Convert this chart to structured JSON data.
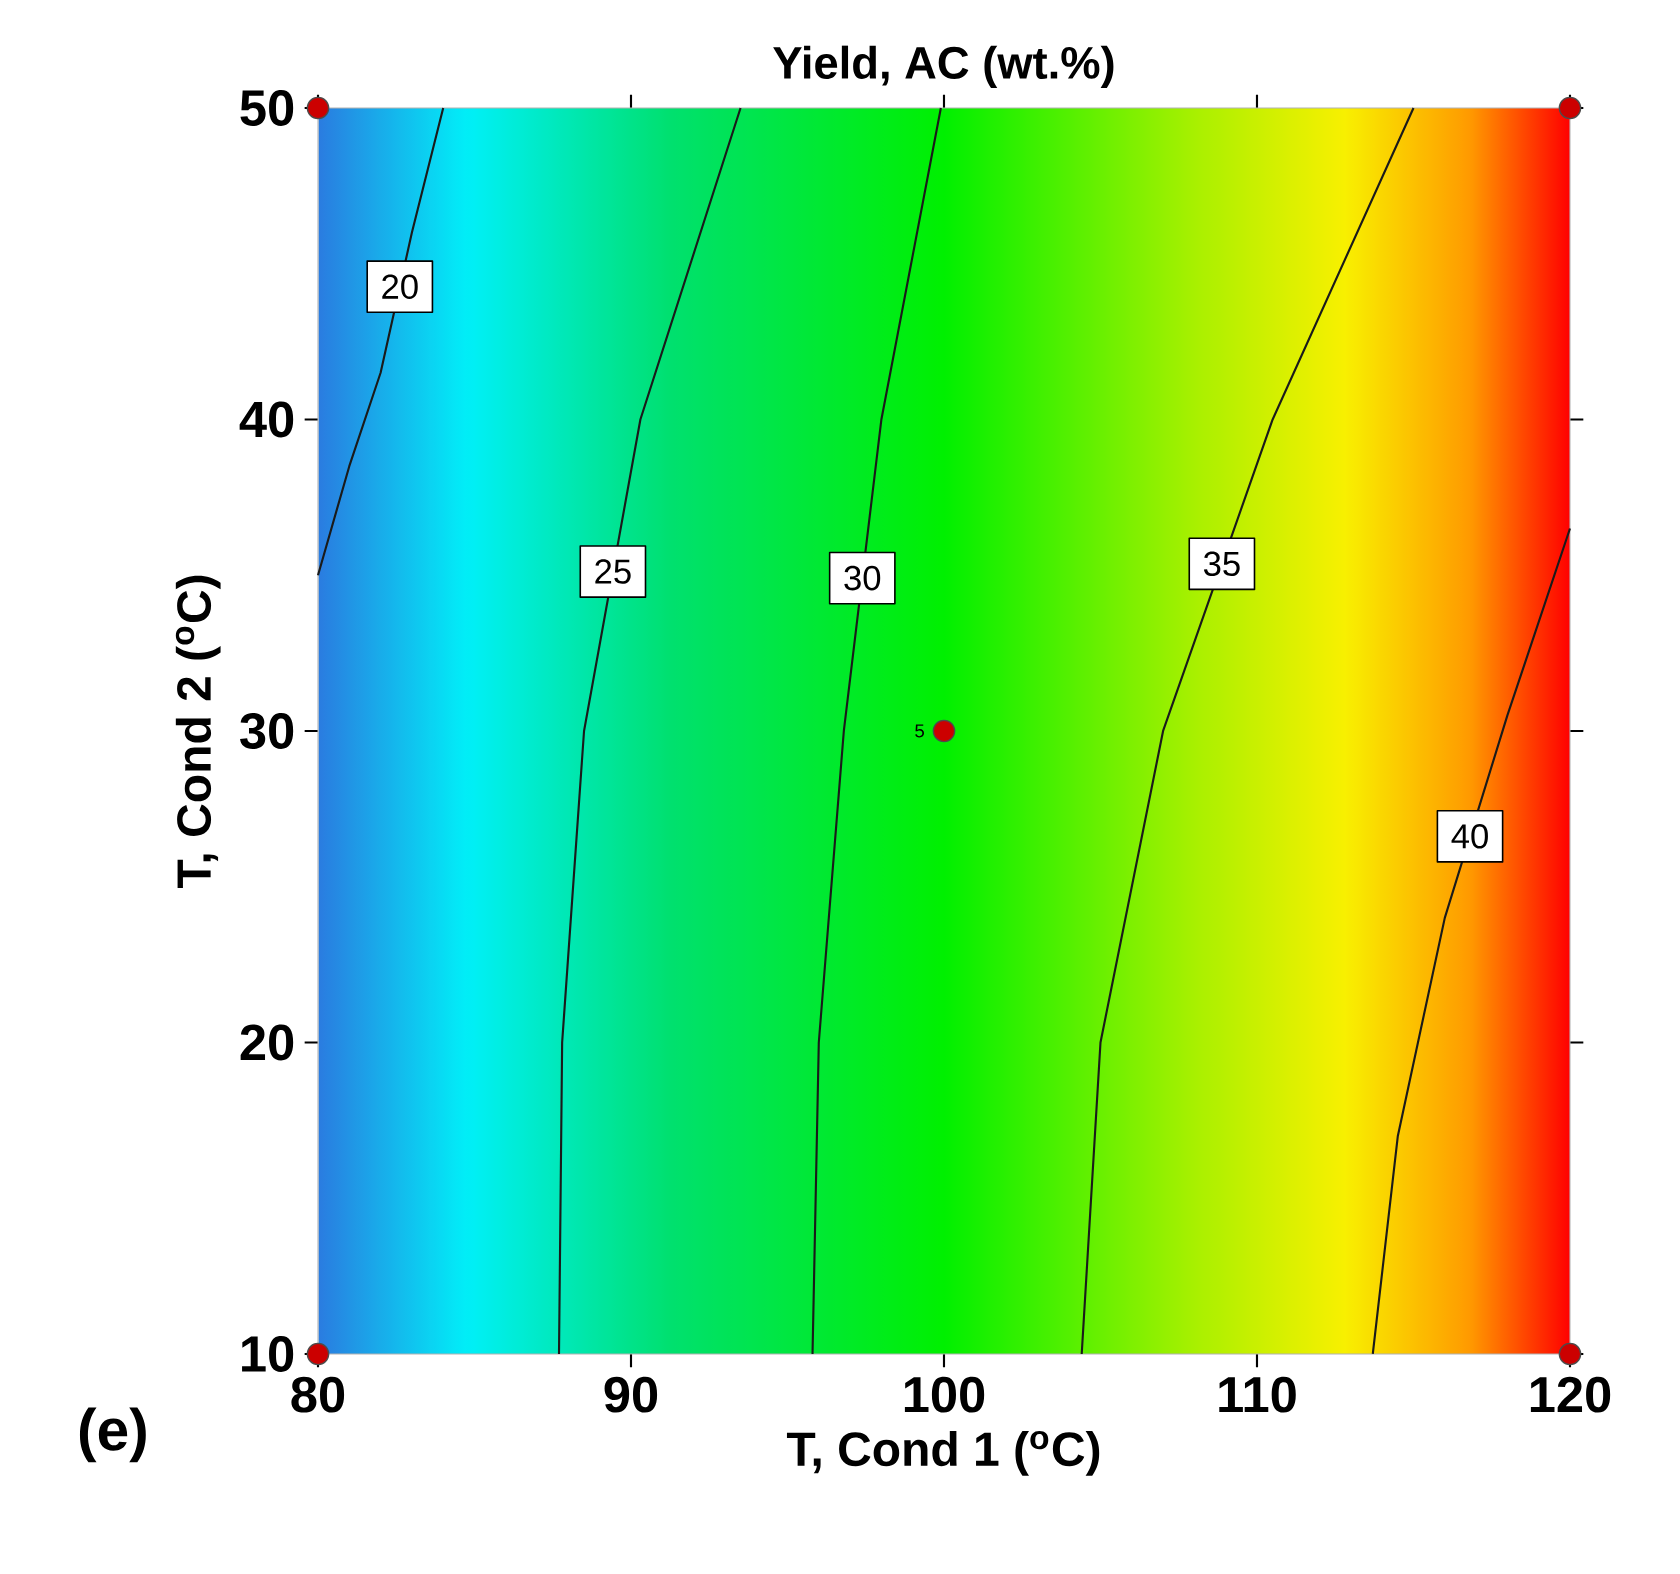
{
  "chart_data": {
    "type": "line",
    "title": "Yield, AC (wt.%)",
    "xlabel": "T, Cond 1 ($^{o}$C)",
    "ylabel": "T, Cond 2 ($^{o}$C)",
    "xlim": [
      80,
      120
    ],
    "ylim": [
      10,
      50
    ],
    "xticks": [
      80,
      90,
      100,
      110,
      120
    ],
    "yticks": [
      10,
      20,
      30,
      40,
      50
    ],
    "series": [
      {
        "name": "20",
        "color": "#1a1a1a",
        "x": [
          80,
          81,
          82,
          83,
          84
        ],
        "values": [
          35,
          38.5,
          41.5,
          46,
          50
        ]
      },
      {
        "name": "25",
        "color": "#1a1a1a",
        "x": [
          87.7,
          87.8,
          88.5,
          90.3,
          93.5
        ],
        "values": [
          10,
          20,
          30,
          40,
          50
        ]
      },
      {
        "name": "30",
        "color": "#1a1a1a",
        "x": [
          95.8,
          96,
          96.8,
          98,
          99.9
        ],
        "values": [
          10,
          20,
          30,
          40,
          50
        ]
      },
      {
        "name": "35",
        "color": "#1a1a1a",
        "x": [
          104.4,
          105,
          107,
          110.5,
          115
        ],
        "values": [
          10,
          20,
          30,
          40,
          50
        ]
      },
      {
        "name": "40",
        "color": "#1a1a1a",
        "x": [
          113.7,
          114.5,
          116,
          118,
          120
        ],
        "values": [
          10,
          17,
          24,
          30.5,
          36.5
        ]
      },
      {
        "type": "scatter",
        "marker": "circle",
        "color": "#cc0000",
        "x": [
          80,
          80,
          120,
          120,
          100
        ],
        "values": [
          10,
          50,
          10,
          50,
          30
        ]
      }
    ],
    "annotations": [
      "(e)",
      {
        "text": "5",
        "x": 100,
        "y": 30
      }
    ]
  }
}
